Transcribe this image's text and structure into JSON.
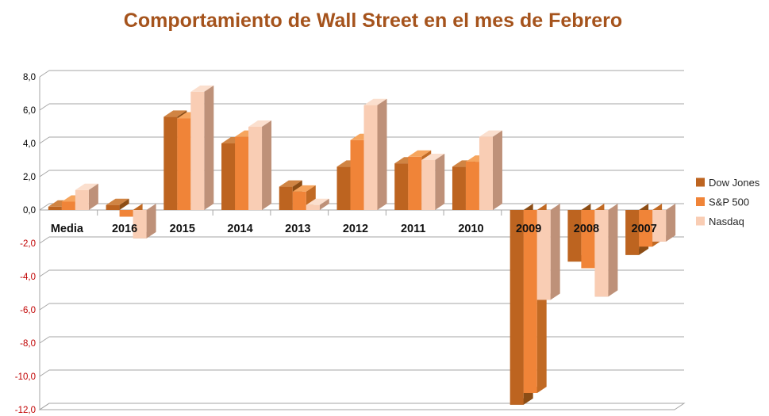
{
  "title": "Comportamiento de Wall Street en el mes de Febrero",
  "colors": {
    "title": "#A5531C",
    "gridline": "#A6A6A6",
    "axis_label_positive": "#000000",
    "axis_label_negative": "#C00000",
    "category_label": "#111111",
    "legend_text": "#262626"
  },
  "chart_data": {
    "type": "bar",
    "style": "3d-column",
    "title": "Comportamiento de Wall Street en el mes de Febrero",
    "xlabel": "",
    "ylabel": "",
    "ylim": [
      -12,
      8
    ],
    "ytick_step": 2,
    "grid": true,
    "legend_position": "right",
    "decimal_style": "comma",
    "categories": [
      "Media",
      "2016",
      "2015",
      "2014",
      "2013",
      "2012",
      "2011",
      "2010",
      "2009",
      "2008",
      "2007"
    ],
    "series": [
      {
        "name": "Dow Jones",
        "values": [
          0.2,
          0.3,
          5.6,
          4.0,
          1.4,
          2.6,
          2.8,
          2.6,
          -11.7,
          -3.1,
          -2.7
        ],
        "color_front": "#BD6420",
        "color_top": "#D08443",
        "color_side": "#8C4D15"
      },
      {
        "name": "S&P 500",
        "values": [
          0.5,
          -0.4,
          5.5,
          4.4,
          1.1,
          4.2,
          3.2,
          2.9,
          -11.0,
          -3.5,
          -2.2
        ],
        "color_front": "#F08438",
        "color_top": "#F6A55E",
        "color_side": "#C16A24"
      },
      {
        "name": "Nasdaq",
        "values": [
          1.2,
          -1.7,
          7.1,
          5.0,
          0.3,
          6.3,
          3.0,
          4.4,
          -5.4,
          -5.2,
          -1.9
        ],
        "color_front": "#F9CDB4",
        "color_top": "#FBDFCE",
        "color_side": "#BE9179"
      }
    ],
    "yticks": [
      {
        "value": 8,
        "label": "8,0",
        "color": "#000000"
      },
      {
        "value": 6,
        "label": "6,0",
        "color": "#000000"
      },
      {
        "value": 4,
        "label": "4,0",
        "color": "#000000"
      },
      {
        "value": 2,
        "label": "2,0",
        "color": "#000000"
      },
      {
        "value": 0,
        "label": "0,0",
        "color": "#000000"
      },
      {
        "value": -2,
        "label": "-2,0",
        "color": "#C00000"
      },
      {
        "value": -4,
        "label": "-4,0",
        "color": "#C00000"
      },
      {
        "value": -6,
        "label": "-6,0",
        "color": "#C00000"
      },
      {
        "value": -8,
        "label": "-8,0",
        "color": "#C00000"
      },
      {
        "value": -10,
        "label": "-10,0",
        "color": "#C00000"
      },
      {
        "value": -12,
        "label": "-12,0",
        "color": "#C00000"
      }
    ]
  }
}
